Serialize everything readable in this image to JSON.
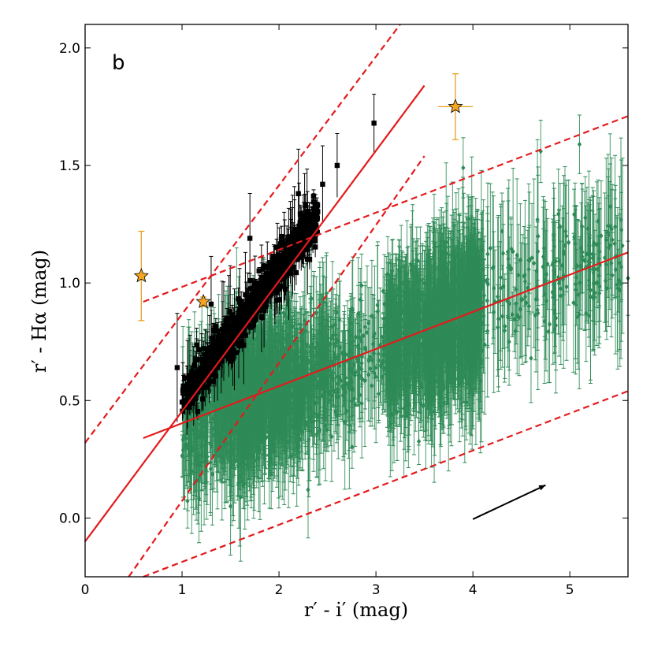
{
  "chart_data": {
    "type": "scatter",
    "panel_label": "b",
    "xlabel": "r′ - i′ (mag)",
    "ylabel": "r′ - Hα (mag)",
    "xlim": [
      0,
      5.6
    ],
    "ylim": [
      -0.25,
      2.1
    ],
    "x_ticks": [
      0,
      1,
      2,
      3,
      4,
      5
    ],
    "y_ticks": [
      0.0,
      0.5,
      1.0,
      1.5,
      2.0
    ],
    "x_tick_labels": [
      "0",
      "1",
      "2",
      "3",
      "4",
      "5"
    ],
    "y_tick_labels": [
      "0.0",
      "0.5",
      "1.0",
      "1.5",
      "2.0"
    ],
    "colors": {
      "green": "#2e8b57",
      "black": "#000000",
      "star": "#f5a623",
      "star_err": "#e8a020",
      "line": "#e41a1c"
    },
    "lines": [
      {
        "name": "steep-fit",
        "style": "solid",
        "x": [
          0,
          3.5
        ],
        "y": [
          -0.1,
          1.84
        ]
      },
      {
        "name": "steep-upper",
        "style": "dashed",
        "x": [
          0,
          3.25
        ],
        "y": [
          0.32,
          2.1
        ]
      },
      {
        "name": "steep-lower",
        "style": "dashed",
        "x": [
          0.45,
          3.5
        ],
        "y": [
          -0.25,
          1.54
        ]
      },
      {
        "name": "shallow-fit",
        "style": "solid",
        "x": [
          0.6,
          5.6
        ],
        "y": [
          0.34,
          1.13
        ]
      },
      {
        "name": "shallow-upper",
        "style": "dashed",
        "x": [
          0.6,
          5.6
        ],
        "y": [
          0.92,
          1.71
        ]
      },
      {
        "name": "shallow-lower",
        "style": "dashed",
        "x": [
          0.6,
          5.6
        ],
        "y": [
          -0.25,
          0.54
        ]
      }
    ],
    "arrow": {
      "name": "reddening-vector",
      "x": [
        4.0,
        4.75
      ],
      "y": [
        -0.005,
        0.14
      ]
    },
    "series": [
      {
        "name": "green-diamonds",
        "marker": "diamond",
        "description": "dense cloud of sources, r'-i' ~0.9-5.6, r'-Halpha ~0.1-1.8",
        "highlight_points": {
          "x": [
            5.1,
            4.7,
            5.6,
            4.3,
            4.1,
            3.6,
            5.2,
            5.5,
            3.9,
            4.9,
            2.3,
            1.5,
            1.1,
            3.7,
            4.6
          ],
          "y": [
            1.59,
            1.56,
            1.02,
            1.22,
            1.14,
            1.23,
            0.86,
            1.01,
            1.49,
            1.24,
            0.12,
            0.05,
            0.2,
            0.49,
            0.68
          ]
        }
      },
      {
        "name": "black-squares",
        "marker": "square",
        "description": "narrow sequence along steep locus, r'-i' ~0.9-3.0",
        "highlight_points": {
          "x": [
            0.95,
            2.98,
            2.6,
            2.45,
            2.2,
            1.7,
            1.3,
            1.05,
            2.35,
            2.1
          ],
          "y": [
            0.64,
            1.68,
            1.5,
            1.42,
            1.38,
            1.19,
            0.91,
            0.5,
            1.25,
            1.08
          ]
        }
      },
      {
        "name": "orange-stars",
        "marker": "star",
        "points": [
          {
            "x": 0.58,
            "y": 1.03,
            "yerr": 0.19
          },
          {
            "x": 1.22,
            "y": 0.92,
            "yerr": 0.02
          },
          {
            "x": 3.82,
            "y": 1.75,
            "yerr": 0.14,
            "xerr": 0.18
          }
        ]
      }
    ]
  }
}
